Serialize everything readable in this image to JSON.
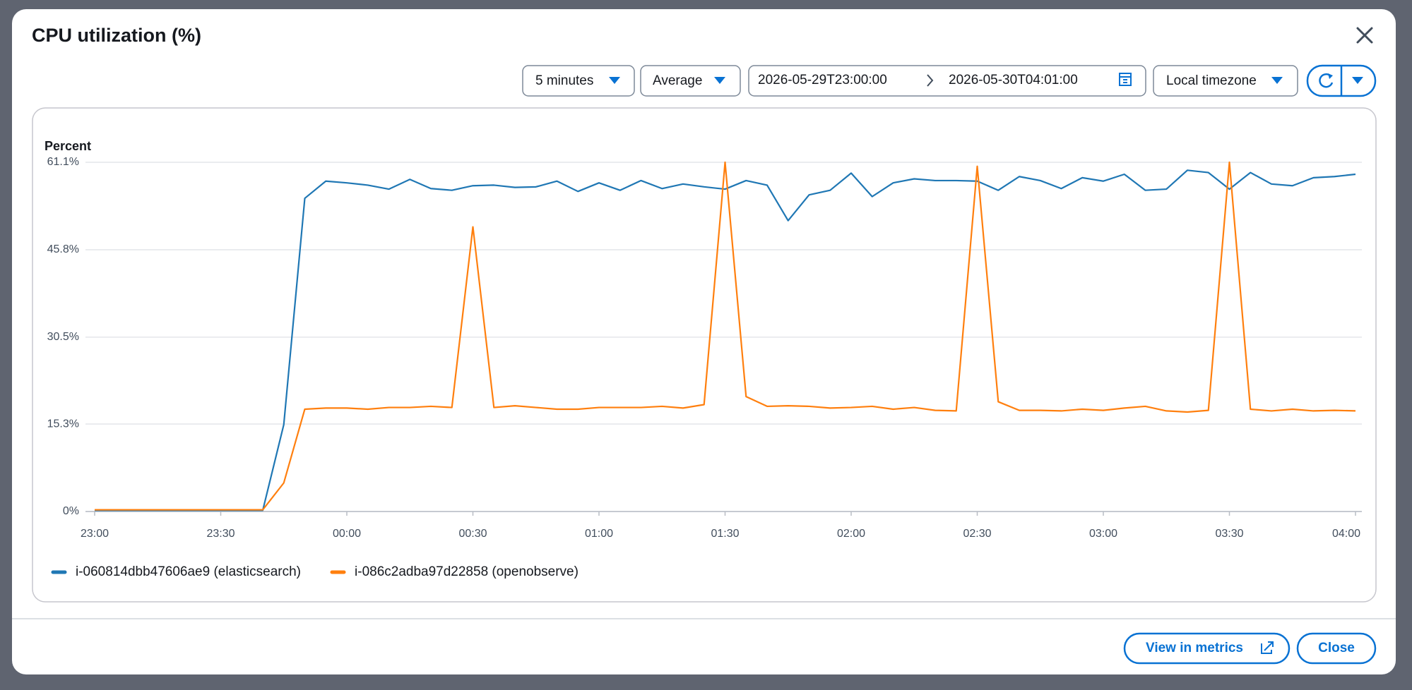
{
  "modal": {
    "title": "CPU utilization (%)",
    "controls": {
      "period": "5 minutes",
      "statistic": "Average",
      "start": "2026-05-29T23:00:00",
      "end": "2026-05-30T04:01:00",
      "timezone": "Local timezone"
    },
    "buttons": {
      "view": "View in metrics",
      "close": "Close"
    }
  },
  "chart_data": {
    "type": "line",
    "ylabel": "Percent",
    "categories": [
      "23:00",
      null,
      null,
      null,
      null,
      null,
      "23:30",
      null,
      null,
      null,
      null,
      null,
      "00:00",
      null,
      null,
      null,
      null,
      null,
      "00:30",
      null,
      null,
      null,
      null,
      null,
      "01:00",
      null,
      null,
      null,
      null,
      null,
      "01:30",
      null,
      null,
      null,
      null,
      null,
      "02:00",
      null,
      null,
      null,
      null,
      null,
      "02:30",
      null,
      null,
      null,
      null,
      null,
      "03:00",
      null,
      null,
      null,
      null,
      null,
      "03:30",
      null,
      null,
      null,
      null,
      null,
      "04:00"
    ],
    "ylim": [
      0,
      61.1
    ],
    "yticks": [
      {
        "value": 0,
        "label": "0%"
      },
      {
        "value": 15.3,
        "label": "15.3%"
      },
      {
        "value": 30.5,
        "label": "30.5%"
      },
      {
        "value": 45.8,
        "label": "45.8%"
      },
      {
        "value": 61.1,
        "label": "61.1%"
      }
    ],
    "grid": true,
    "legend": "bottom-left",
    "series": [
      {
        "name": "i-060814dbb47606ae9 (elasticsearch)",
        "color": "#1f77b4",
        "values": [
          0.2,
          0.2,
          0.2,
          0.2,
          0.2,
          0.2,
          0.2,
          0.2,
          0.2,
          15.2,
          54.8,
          57.8,
          57.5,
          57.1,
          56.4,
          58.1,
          56.5,
          56.2,
          57.0,
          57.1,
          56.7,
          56.8,
          57.8,
          56.0,
          57.5,
          56.2,
          57.9,
          56.5,
          57.3,
          56.8,
          56.4,
          57.9,
          57.1,
          50.9,
          55.4,
          56.2,
          59.2,
          55.1,
          57.5,
          58.2,
          57.9,
          57.9,
          57.8,
          56.2,
          58.6,
          57.9,
          56.5,
          58.4,
          57.8,
          59.0,
          56.2,
          56.4,
          59.7,
          59.3,
          56.4,
          59.3,
          57.3,
          57.0,
          58.4,
          58.6,
          59.0
        ]
      },
      {
        "name": "i-086c2adba97d22858 (openobserve)",
        "color": "#ff7f0e",
        "values": [
          0.3,
          0.3,
          0.3,
          0.3,
          0.3,
          0.3,
          0.3,
          0.3,
          0.3,
          5.0,
          17.9,
          18.1,
          18.1,
          17.9,
          18.2,
          18.2,
          18.4,
          18.2,
          49.8,
          18.2,
          18.5,
          18.2,
          17.9,
          17.9,
          18.2,
          18.2,
          18.2,
          18.4,
          18.1,
          18.7,
          61.1,
          20.1,
          18.4,
          18.5,
          18.4,
          18.1,
          18.2,
          18.4,
          17.9,
          18.2,
          17.7,
          17.6,
          60.4,
          19.2,
          17.7,
          17.7,
          17.6,
          17.9,
          17.7,
          18.1,
          18.4,
          17.6,
          17.4,
          17.7,
          61.1,
          17.9,
          17.6,
          17.9,
          17.6,
          17.7,
          17.6
        ]
      }
    ]
  }
}
